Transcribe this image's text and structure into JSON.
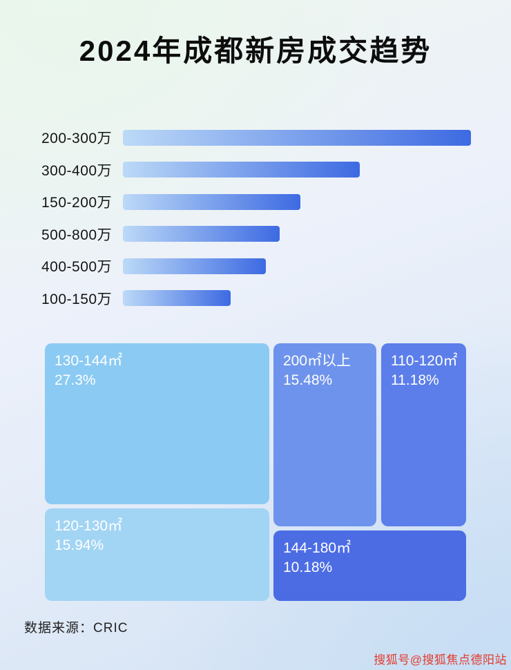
{
  "title": "2024年成都新房成交趋势",
  "chart_data": [
    {
      "type": "bar",
      "orientation": "horizontal",
      "categories": [
        "200-300万",
        "300-400万",
        "150-200万",
        "500-800万",
        "400-500万",
        "100-150万"
      ],
      "values": [
        100,
        68,
        51,
        45,
        41,
        31
      ],
      "ylabel": "",
      "xlabel": "",
      "axis_shown": false,
      "bar_gradient": [
        "#bcd9f7",
        "#3d6ae2"
      ]
    },
    {
      "type": "treemap",
      "items": [
        {
          "label": "130-144㎡",
          "value": "27.3%",
          "color": "#8acaf3"
        },
        {
          "label": "120-130㎡",
          "value": "15.94%",
          "color": "#a2d4f4"
        },
        {
          "label": "200㎡以上",
          "value": "15.48%",
          "color": "#6e93ec"
        },
        {
          "label": "110-120㎡",
          "value": "11.18%",
          "color": "#5c7eea"
        },
        {
          "label": "144-180㎡",
          "value": "10.18%",
          "color": "#4c6ce4"
        }
      ]
    }
  ],
  "footer": {
    "source": "数据来源：CRIC"
  },
  "watermark": "搜狐号@搜狐焦点德阳站"
}
